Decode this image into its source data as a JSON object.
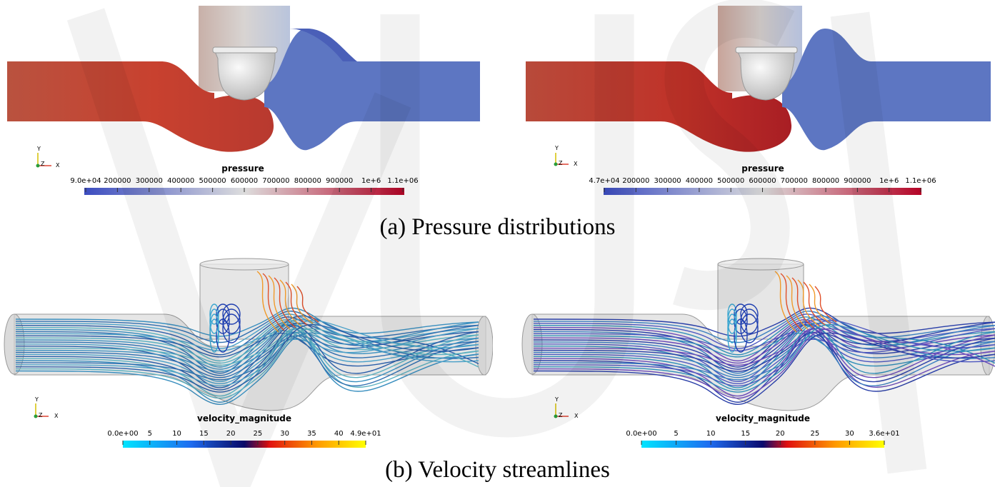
{
  "captions": {
    "a": "(a) Pressure distributions",
    "b": "(b) Velocity streamlines"
  },
  "panels": [
    {
      "id": "pressure-left",
      "colorbar_title": "pressure",
      "ticks": [
        "9.0e+04",
        "200000",
        "300000",
        "400000",
        "500000",
        "600000",
        "700000",
        "800000",
        "900000",
        "1e+6",
        "1.1e+06"
      ],
      "colormap": "cool-to-warm"
    },
    {
      "id": "pressure-right",
      "colorbar_title": "pressure",
      "ticks": [
        "4.7e+04",
        "200000",
        "300000",
        "400000",
        "500000",
        "600000",
        "700000",
        "800000",
        "900000",
        "1e+6",
        "1.1e+06"
      ],
      "colormap": "cool-to-warm"
    },
    {
      "id": "velocity-left",
      "colorbar_title": "velocity_magnitude",
      "ticks": [
        "0.0e+00",
        "5",
        "10",
        "15",
        "20",
        "25",
        "30",
        "35",
        "40",
        "4.9e+01"
      ],
      "colormap": "jet-like"
    },
    {
      "id": "velocity-right",
      "colorbar_title": "velocity_magnitude",
      "ticks": [
        "0.0e+00",
        "5",
        "10",
        "15",
        "20",
        "25",
        "30",
        "3.6e+01"
      ],
      "colormap": "jet-like"
    }
  ],
  "axes_labels": {
    "y": "Y",
    "z": "Z",
    "x": "X"
  },
  "colors": {
    "high_pressure": "#c0392b",
    "low_pressure": "#5a74c0",
    "housing": "#d9c9c3",
    "valve": "#e8e8e8",
    "pipe_glass": "#d6d6d6"
  }
}
